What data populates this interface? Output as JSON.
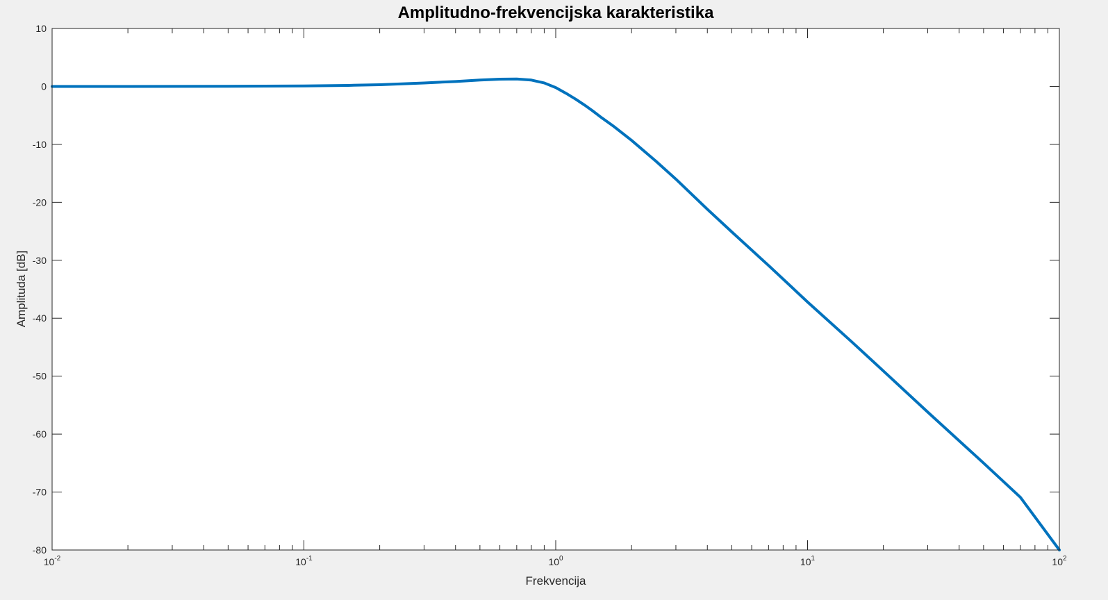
{
  "chart_data": {
    "type": "line",
    "title": "Amplitudno-frekvencijska karakteristika",
    "xlabel": "Frekvencija",
    "ylabel": "Amplituda [dB]",
    "xscale": "log",
    "xlim": [
      0.01,
      100
    ],
    "ylim": [
      -80,
      10
    ],
    "grid": false,
    "legend": "none",
    "x_ticks": [
      {
        "base": "10",
        "exp": "-2",
        "value": 0.01
      },
      {
        "base": "10",
        "exp": "-1",
        "value": 0.1
      },
      {
        "base": "10",
        "exp": "0",
        "value": 1
      },
      {
        "base": "10",
        "exp": "1",
        "value": 10
      },
      {
        "base": "10",
        "exp": "2",
        "value": 100
      }
    ],
    "y_ticks": [
      {
        "label": "10",
        "value": 10
      },
      {
        "label": "0",
        "value": 0
      },
      {
        "label": "-10",
        "value": -10
      },
      {
        "label": "-20",
        "value": -20
      },
      {
        "label": "-30",
        "value": -30
      },
      {
        "label": "-40",
        "value": -40
      },
      {
        "label": "-50",
        "value": -50
      },
      {
        "label": "-60",
        "value": -60
      },
      {
        "label": "-70",
        "value": -70
      },
      {
        "label": "-80",
        "value": -80
      }
    ],
    "series": [
      {
        "color": "#0072BD",
        "x": [
          0.01,
          0.02,
          0.05,
          0.1,
          0.15,
          0.2,
          0.3,
          0.4,
          0.5,
          0.6,
          0.7,
          0.8,
          0.9,
          1.0,
          1.1,
          1.2,
          1.3,
          1.4,
          1.5,
          1.7,
          2.0,
          2.5,
          3.0,
          4.0,
          5.0,
          7.0,
          10.0,
          15.0,
          20.0,
          30.0,
          50.0,
          70.0,
          100.0
        ],
        "y": [
          0.0,
          0.0,
          0.02,
          0.08,
          0.18,
          0.3,
          0.6,
          0.85,
          1.1,
          1.25,
          1.28,
          1.1,
          0.6,
          -0.2,
          -1.2,
          -2.2,
          -3.2,
          -4.2,
          -5.2,
          -6.9,
          -9.3,
          -12.9,
          -16.0,
          -21.2,
          -25.1,
          -30.9,
          -37.2,
          -44.1,
          -49.1,
          -56.2,
          -65.0,
          -70.9,
          -80.0
        ]
      }
    ]
  }
}
